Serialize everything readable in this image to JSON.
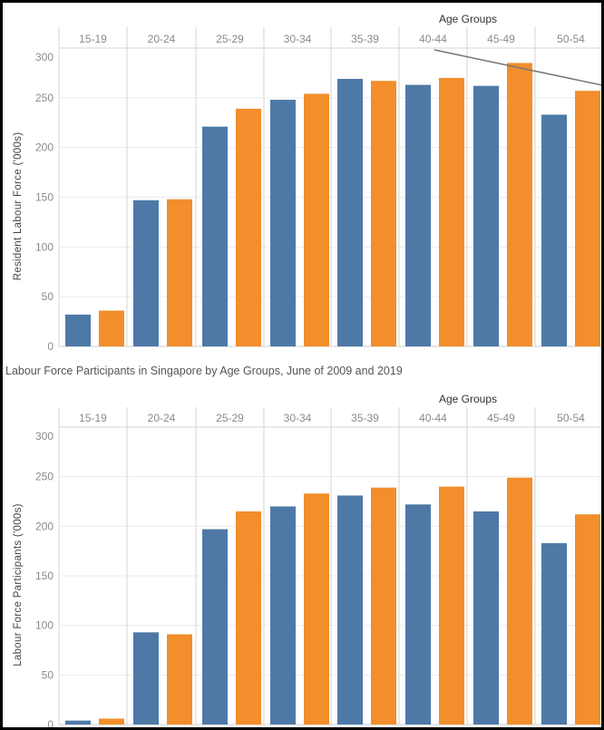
{
  "colors": {
    "2009": "#4e79a7",
    "2019": "#f28e2b",
    "grid": "#ececec",
    "divider": "#d4d4d4"
  },
  "chart_data": [
    {
      "type": "bar",
      "title": "",
      "column_header": "Age Groups",
      "ylabel": "Resident Labour Force ('000s)",
      "ylim": [
        0,
        300
      ],
      "yticks": [
        0,
        50,
        100,
        150,
        200,
        250,
        300
      ],
      "grid": true,
      "categories": [
        "15-19",
        "20-24",
        "25-29",
        "30-34",
        "35-39",
        "40-44",
        "45-49",
        "50-54"
      ],
      "series": [
        {
          "color": "#4e79a7",
          "values": [
            32,
            147,
            221,
            248,
            269,
            263,
            262,
            233
          ]
        },
        {
          "color": "#f28e2b",
          "values": [
            36,
            148,
            239,
            254,
            267,
            270,
            285,
            257
          ]
        }
      ],
      "annotation": "diagonal grey line from 40-44 header area toward 50-54 at ~265"
    },
    {
      "type": "bar",
      "title": "Labour Force Participants in Singapore by Age Groups, June of 2009 and 2019",
      "column_header": "Age Groups",
      "ylabel": "Labour Force Participants ('000s)",
      "ylim": [
        0,
        300
      ],
      "yticks": [
        0,
        50,
        100,
        150,
        200,
        250,
        300
      ],
      "grid": true,
      "categories": [
        "15-19",
        "20-24",
        "25-29",
        "30-34",
        "35-39",
        "40-44",
        "45-49",
        "50-54"
      ],
      "series": [
        {
          "color": "#4e79a7",
          "values": [
            4,
            93,
            197,
            220,
            231,
            222,
            215,
            183
          ]
        },
        {
          "color": "#f28e2b",
          "values": [
            6,
            91,
            215,
            233,
            239,
            240,
            249,
            212
          ]
        }
      ]
    }
  ]
}
